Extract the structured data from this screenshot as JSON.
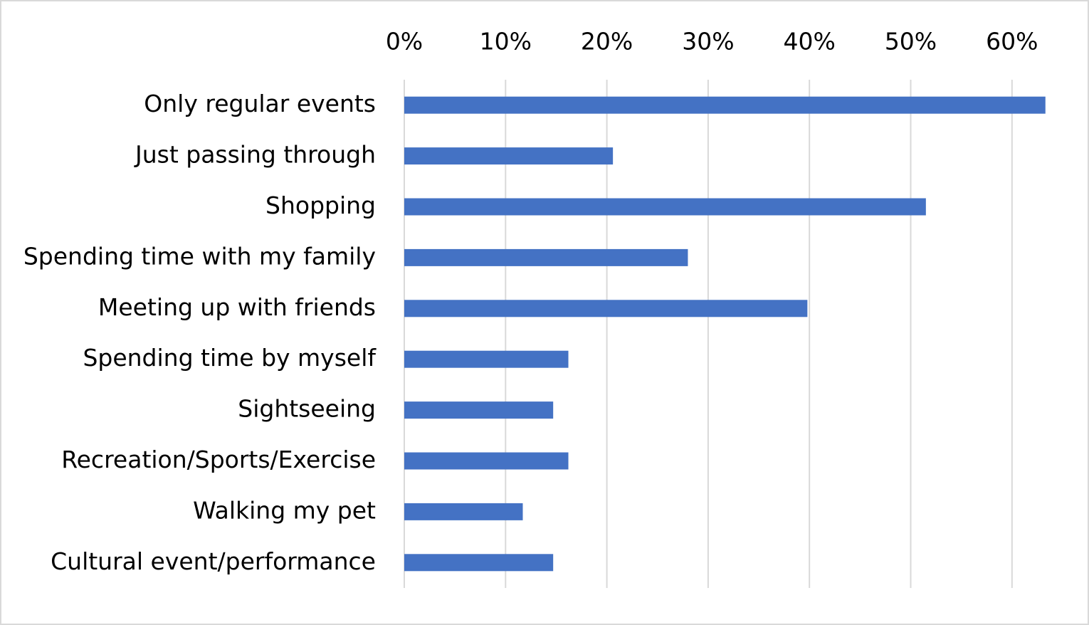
{
  "chart_data": {
    "type": "bar",
    "orientation": "horizontal",
    "categories": [
      "Only regular events",
      "Just passing through",
      "Shopping",
      "Spending time with my family",
      "Meeting up with friends",
      "Spending time by myself",
      "Sightseeing",
      "Recreation/Sports/Exercise",
      "Walking my pet",
      "Cultural event/performance"
    ],
    "values": [
      63.3,
      20.6,
      51.5,
      28.0,
      39.8,
      16.2,
      14.7,
      16.2,
      11.7,
      14.7
    ],
    "color": "#4472c4",
    "xlim": [
      0,
      64
    ],
    "xticks": [
      {
        "value": 0,
        "label": "0%"
      },
      {
        "value": 10,
        "label": "10%"
      },
      {
        "value": 20,
        "label": "20%"
      },
      {
        "value": 30,
        "label": "30%"
      },
      {
        "value": 40,
        "label": "40%"
      },
      {
        "value": 50,
        "label": "50%"
      },
      {
        "value": 60,
        "label": "60%"
      }
    ],
    "grid": true
  }
}
